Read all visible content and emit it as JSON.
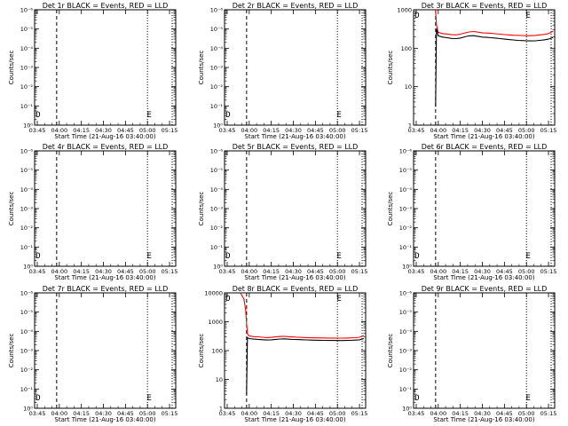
{
  "chart_data": [
    {
      "type": "line",
      "title": "Det 1r BLACK = Events, RED = LLD",
      "xlabel": "Start Time (21-Aug-16 03:40:00)",
      "ylabel": "Counts/sec",
      "log_y": true,
      "ylim": [
        1,
        1000000
      ],
      "y_ticks": [
        "10⁰",
        "10⁻¹",
        "10⁻²",
        "10⁻³",
        "10⁻⁴",
        "10⁻⁵",
        "10⁻⁶"
      ],
      "xlim": [
        3.72,
        5.32
      ],
      "x_ticks": [
        "03:45",
        "04:00",
        "04:15",
        "04:30",
        "04:45",
        "05:00",
        "05:15"
      ],
      "dash_line_x": 3.97,
      "dot_lines_x": [
        5.0,
        5.28
      ],
      "markers": [
        {
          "t": "D",
          "x": 3.76
        },
        {
          "t": "E",
          "x": 5.02
        }
      ],
      "series": []
    },
    {
      "type": "line",
      "title": "Det 2r BLACK = Events, RED = LLD",
      "xlabel": "Start Time (21-Aug-16 03:40:00)",
      "ylabel": "Counts/sec",
      "log_y": true,
      "ylim": [
        1,
        1000000
      ],
      "y_ticks": [
        "10⁰",
        "10⁻¹",
        "10⁻²",
        "10⁻³",
        "10⁻⁴",
        "10⁻⁵",
        "10⁻⁶"
      ],
      "xlim": [
        3.72,
        5.32
      ],
      "x_ticks": [
        "03:45",
        "04:00",
        "04:15",
        "04:30",
        "04:45",
        "05:00",
        "05:15"
      ],
      "dash_line_x": 3.97,
      "dot_lines_x": [
        5.0,
        5.28
      ],
      "markers": [
        {
          "t": "D",
          "x": 3.76
        },
        {
          "t": "E",
          "x": 5.02
        }
      ],
      "series": []
    },
    {
      "type": "line",
      "title": "Det 3r BLACK = Events, RED = LLD",
      "xlabel": "Start Time (21-Aug-16 03:40:00)",
      "ylabel": "Counts/sec",
      "log_y": true,
      "ylim": [
        1,
        1000
      ],
      "y_ticks": [
        "1",
        "10",
        "100",
        "1000"
      ],
      "xlim": [
        3.72,
        5.32
      ],
      "x_ticks": [
        "03:45",
        "04:00",
        "04:15",
        "04:30",
        "04:45",
        "05:00",
        "05:15"
      ],
      "dash_line_x": 3.97,
      "dot_lines_x": [
        5.0,
        5.28
      ],
      "markers": [
        {
          "t": "D",
          "x": 3.76
        },
        {
          "t": "E",
          "x": 5.02
        }
      ],
      "series": [
        {
          "color": "#ff0000",
          "x": [
            3.97,
            3.98,
            4.0,
            4.05,
            4.1,
            4.15,
            4.2,
            4.25,
            4.3,
            4.35,
            4.4,
            4.45,
            4.5,
            4.55,
            4.6,
            4.65,
            4.7,
            4.75,
            4.8,
            4.85,
            4.9,
            4.95,
            5.0,
            5.05,
            5.1,
            5.15,
            5.2,
            5.25,
            5.3
          ],
          "y": [
            1000,
            400,
            260,
            240,
            235,
            225,
            222,
            232,
            250,
            265,
            272,
            262,
            250,
            248,
            243,
            238,
            232,
            226,
            222,
            218,
            216,
            214,
            212,
            212,
            215,
            222,
            228,
            240,
            275
          ]
        },
        {
          "color": "#000000",
          "x": [
            3.97,
            3.98,
            4.0,
            4.05,
            4.1,
            4.15,
            4.2,
            4.25,
            4.3,
            4.35,
            4.4,
            4.45,
            4.5,
            4.55,
            4.6,
            4.65,
            4.7,
            4.75,
            4.8,
            4.85,
            4.9,
            4.95,
            5.0,
            5.05,
            5.1,
            5.15,
            5.2,
            5.25,
            5.3
          ],
          "y": [
            3,
            320,
            210,
            195,
            188,
            180,
            178,
            184,
            198,
            210,
            212,
            204,
            195,
            192,
            188,
            184,
            178,
            172,
            168,
            164,
            160,
            158,
            156,
            155,
            156,
            160,
            165,
            172,
            190
          ]
        }
      ]
    },
    {
      "type": "line",
      "title": "Det 4r BLACK = Events, RED = LLD",
      "xlabel": "Start Time (21-Aug-16 03:40:00)",
      "ylabel": "Counts/sec",
      "log_y": true,
      "ylim": [
        1,
        1000000
      ],
      "y_ticks": [
        "10⁰",
        "10⁻¹",
        "10⁻²",
        "10⁻³",
        "10⁻⁴",
        "10⁻⁵",
        "10⁻⁶"
      ],
      "xlim": [
        3.72,
        5.32
      ],
      "x_ticks": [
        "03:45",
        "04:00",
        "04:15",
        "04:30",
        "04:45",
        "05:00",
        "05:15"
      ],
      "dash_line_x": 3.97,
      "dot_lines_x": [
        5.0,
        5.28
      ],
      "markers": [
        {
          "t": "D",
          "x": 3.76
        },
        {
          "t": "E",
          "x": 5.02
        }
      ],
      "series": []
    },
    {
      "type": "line",
      "title": "Det 5r BLACK = Events, RED = LLD",
      "xlabel": "Start Time (21-Aug-16 03:40:00)",
      "ylabel": "Counts/sec",
      "log_y": true,
      "ylim": [
        1,
        1000000
      ],
      "y_ticks": [
        "10⁰",
        "10⁻¹",
        "10⁻²",
        "10⁻³",
        "10⁻⁴",
        "10⁻⁵",
        "10⁻⁶"
      ],
      "xlim": [
        3.72,
        5.32
      ],
      "x_ticks": [
        "03:45",
        "04:00",
        "04:15",
        "04:30",
        "04:45",
        "05:00",
        "05:15"
      ],
      "dash_line_x": 3.97,
      "dot_lines_x": [
        5.0,
        5.28
      ],
      "markers": [
        {
          "t": "D",
          "x": 3.76
        },
        {
          "t": "E",
          "x": 5.02
        }
      ],
      "series": []
    },
    {
      "type": "line",
      "title": "Det 6r BLACK = Events, RED = LLD",
      "xlabel": "Start Time (21-Aug-16 03:40:00)",
      "ylabel": "Counts/sec",
      "log_y": true,
      "ylim": [
        1,
        1000000
      ],
      "y_ticks": [
        "10⁰",
        "10⁻¹",
        "10⁻²",
        "10⁻³",
        "10⁻⁴",
        "10⁻⁵",
        "10⁻⁶"
      ],
      "xlim": [
        3.72,
        5.32
      ],
      "x_ticks": [
        "03:45",
        "04:00",
        "04:15",
        "04:30",
        "04:45",
        "05:00",
        "05:15"
      ],
      "dash_line_x": 3.97,
      "dot_lines_x": [
        5.0,
        5.28
      ],
      "markers": [
        {
          "t": "D",
          "x": 3.76
        },
        {
          "t": "E",
          "x": 5.02
        }
      ],
      "series": []
    },
    {
      "type": "line",
      "title": "Det 7r BLACK = Events, RED = LLD",
      "xlabel": "Start Time (21-Aug-16 03:40:00)",
      "ylabel": "Counts/sec",
      "log_y": true,
      "ylim": [
        1,
        1000000
      ],
      "y_ticks": [
        "10⁰",
        "10⁻¹",
        "10⁻²",
        "10⁻³",
        "10⁻⁴",
        "10⁻⁵",
        "10⁻⁶"
      ],
      "xlim": [
        3.72,
        5.32
      ],
      "x_ticks": [
        "03:45",
        "04:00",
        "04:15",
        "04:30",
        "04:45",
        "05:00",
        "05:15"
      ],
      "dash_line_x": 3.97,
      "dot_lines_x": [
        5.0,
        5.28
      ],
      "markers": [
        {
          "t": "D",
          "x": 3.76
        },
        {
          "t": "E",
          "x": 5.02
        }
      ],
      "series": []
    },
    {
      "type": "line",
      "title": "Det 8r BLACK = Events, RED = LLD",
      "xlabel": "Start Time (21-Aug-16 03:40:00)",
      "ylabel": "Counts/sec",
      "log_y": true,
      "ylim": [
        1,
        10000
      ],
      "y_ticks": [
        "1",
        "10",
        "100",
        "1000",
        "10000"
      ],
      "xlim": [
        3.72,
        5.32
      ],
      "x_ticks": [
        "03:45",
        "04:00",
        "04:15",
        "04:30",
        "04:45",
        "05:00",
        "05:15"
      ],
      "dash_line_x": 3.97,
      "dot_lines_x": [
        5.0,
        5.28
      ],
      "markers": [
        {
          "t": "D",
          "x": 3.76
        },
        {
          "t": "E",
          "x": 5.02
        }
      ],
      "series": [
        {
          "color": "#ff0000",
          "x": [
            3.9,
            3.94,
            3.96,
            3.97,
            3.98,
            4.0,
            4.05,
            4.1,
            4.15,
            4.2,
            4.25,
            4.3,
            4.35,
            4.4,
            4.45,
            4.5,
            4.55,
            4.6,
            4.65,
            4.7,
            4.75,
            4.8,
            4.85,
            4.9,
            4.95,
            5.0,
            5.05,
            5.1,
            5.15,
            5.2,
            5.25,
            5.3
          ],
          "y": [
            10000,
            6000,
            2500,
            900,
            380,
            320,
            305,
            300,
            290,
            282,
            288,
            298,
            308,
            310,
            302,
            295,
            290,
            286,
            282,
            278,
            276,
            275,
            273,
            272,
            271,
            270,
            270,
            272,
            275,
            280,
            290,
            330
          ]
        },
        {
          "color": "#000000",
          "x": [
            3.97,
            3.98,
            4.0,
            4.05,
            4.1,
            4.15,
            4.2,
            4.25,
            4.3,
            4.35,
            4.4,
            4.45,
            4.5,
            4.55,
            4.6,
            4.65,
            4.7,
            4.75,
            4.8,
            4.85,
            4.9,
            4.95,
            5.0,
            5.05,
            5.1,
            5.15,
            5.2,
            5.25,
            5.3
          ],
          "y": [
            3,
            280,
            260,
            250,
            245,
            238,
            232,
            236,
            245,
            252,
            254,
            248,
            243,
            240,
            237,
            234,
            231,
            229,
            228,
            226,
            225,
            224,
            223,
            223,
            224,
            226,
            230,
            236,
            260
          ]
        }
      ]
    },
    {
      "type": "line",
      "title": "Det 9r BLACK = Events, RED = LLD",
      "xlabel": "Start Time (21-Aug-16 03:40:00)",
      "ylabel": "Counts/sec",
      "log_y": true,
      "ylim": [
        1,
        1000000
      ],
      "y_ticks": [
        "10⁰",
        "10⁻¹",
        "10⁻²",
        "10⁻³",
        "10⁻⁴",
        "10⁻⁵",
        "10⁻⁶"
      ],
      "xlim": [
        3.72,
        5.32
      ],
      "x_ticks": [
        "03:45",
        "04:00",
        "04:15",
        "04:30",
        "04:45",
        "05:00",
        "05:15"
      ],
      "dash_line_x": 3.97,
      "dot_lines_x": [
        5.0,
        5.28
      ],
      "markers": [
        {
          "t": "D",
          "x": 3.76
        },
        {
          "t": "E",
          "x": 5.02
        }
      ],
      "series": []
    }
  ]
}
